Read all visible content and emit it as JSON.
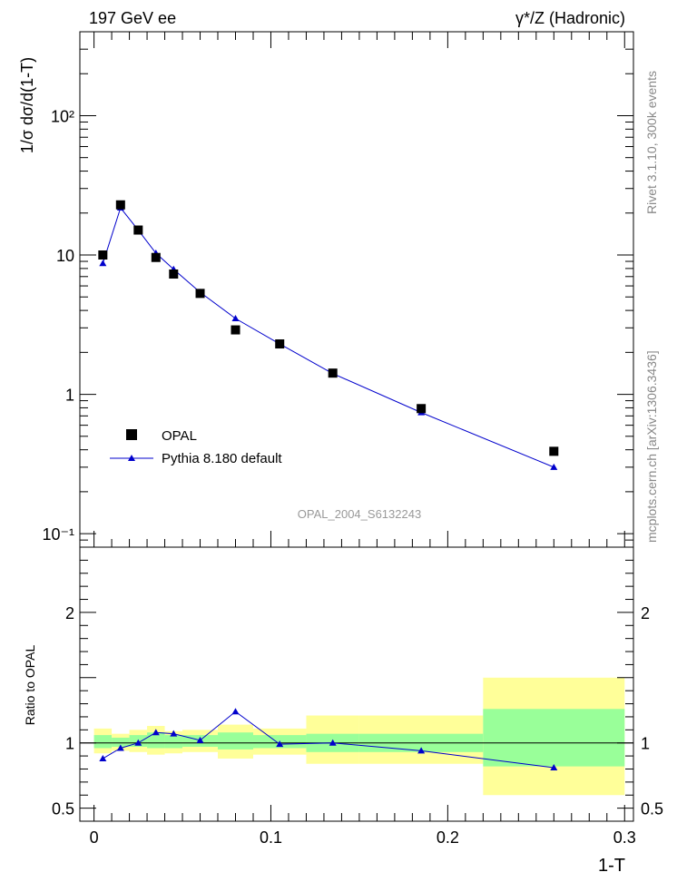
{
  "header": {
    "left": "197 GeV ee",
    "right": "γ*/Z (Hadronic)"
  },
  "side_labels": {
    "rivet": "Rivet 3.1.10,  300k events",
    "mcplots": "mcplots.cern.ch [arXiv:1306.3436]"
  },
  "analysis_id": "OPAL_2004_S6132243",
  "colors": {
    "mc": "#0000cc",
    "band_inner": "#99ff99",
    "band_outer": "#ffff99",
    "data": "#000000"
  },
  "chart_data": [
    {
      "type": "scatter",
      "panel": "main",
      "ylabel": "1/σ dσ/d(1-T)",
      "yscale": "log",
      "ylim": [
        0.08,
        400
      ],
      "xlim": [
        -0.008,
        0.305
      ],
      "y_tick_labels": [
        "10⁻¹",
        "1",
        "10",
        "10²"
      ],
      "legend": {
        "placement": "lower-left",
        "entries": [
          "OPAL",
          "Pythia 8.180 default"
        ]
      },
      "series": [
        {
          "name": "OPAL",
          "marker": "square",
          "x": [
            0.005,
            0.015,
            0.025,
            0.035,
            0.045,
            0.06,
            0.08,
            0.105,
            0.135,
            0.185,
            0.26
          ],
          "values": [
            10.0,
            22.9,
            15.1,
            9.6,
            7.3,
            5.3,
            2.9,
            2.3,
            1.42,
            0.79,
            0.39
          ]
        },
        {
          "name": "Pythia 8.180 default",
          "marker": "triangle",
          "x": [
            0.005,
            0.015,
            0.025,
            0.035,
            0.045,
            0.06,
            0.08,
            0.105,
            0.135,
            0.185,
            0.26
          ],
          "values": [
            8.7,
            21.8,
            15.1,
            10.3,
            7.9,
            5.4,
            3.5,
            2.3,
            1.41,
            0.74,
            0.3
          ]
        }
      ]
    },
    {
      "type": "line",
      "panel": "ratio",
      "ylabel": "Ratio to OPAL",
      "xlabel": "1-T",
      "ylim": [
        0.4,
        2.5
      ],
      "xlim": [
        -0.008,
        0.305
      ],
      "x_tick_labels": [
        "0",
        "0.1",
        "0.2",
        "0.3"
      ],
      "y_tick_labels": [
        "0.5",
        "1",
        "2"
      ],
      "bin_edges": [
        0.0,
        0.01,
        0.02,
        0.03,
        0.04,
        0.05,
        0.07,
        0.09,
        0.12,
        0.15,
        0.22,
        0.3
      ],
      "band_inner": [
        [
          0.96,
          1.06
        ],
        [
          0.97,
          1.04
        ],
        [
          0.97,
          1.06
        ],
        [
          0.96,
          1.08
        ],
        [
          0.96,
          1.06
        ],
        [
          0.97,
          1.06
        ],
        [
          0.95,
          1.08
        ],
        [
          0.96,
          1.06
        ],
        [
          0.93,
          1.07
        ],
        [
          0.93,
          1.07
        ],
        [
          0.82,
          1.26
        ]
      ],
      "band_outer": [
        [
          0.92,
          1.11
        ],
        [
          0.94,
          1.07
        ],
        [
          0.93,
          1.1
        ],
        [
          0.91,
          1.13
        ],
        [
          0.92,
          1.09
        ],
        [
          0.93,
          1.1
        ],
        [
          0.88,
          1.14
        ],
        [
          0.91,
          1.11
        ],
        [
          0.84,
          1.21
        ],
        [
          0.84,
          1.21
        ],
        [
          0.6,
          1.5
        ]
      ],
      "series": [
        {
          "name": "Pythia 8.180 default",
          "x": [
            0.005,
            0.015,
            0.025,
            0.035,
            0.045,
            0.06,
            0.08,
            0.105,
            0.135,
            0.185,
            0.26
          ],
          "values": [
            0.88,
            0.96,
            1.0,
            1.08,
            1.07,
            1.02,
            1.24,
            0.99,
            1.0,
            0.94,
            0.81
          ]
        }
      ]
    }
  ]
}
